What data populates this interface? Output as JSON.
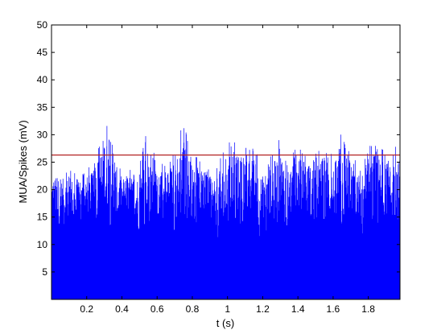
{
  "chart_data": {
    "type": "area",
    "title": "",
    "xlabel": "t (s)",
    "ylabel": "MUA/Spikes (mV)",
    "xlim": [
      0,
      1.98
    ],
    "ylim": [
      0,
      50
    ],
    "x_ticks": [
      0.2,
      0.4,
      0.6,
      0.8,
      1.0,
      1.2,
      1.4,
      1.6,
      1.8
    ],
    "x_tick_labels": [
      "0.2",
      "0.4",
      "0.6",
      "0.8",
      "1",
      "1.2",
      "1.4",
      "1.6",
      "1.8"
    ],
    "y_ticks": [
      5,
      10,
      15,
      20,
      25,
      30,
      35,
      40,
      45,
      50
    ],
    "y_tick_labels": [
      "5",
      "10",
      "15",
      "20",
      "25",
      "30",
      "35",
      "40",
      "45",
      "50"
    ],
    "grid": false,
    "threshold": {
      "y": 26.3,
      "color": "#b22222"
    },
    "signal_color": "#0000ff",
    "series": [
      {
        "t": [
          0.0,
          0.05,
          0.1,
          0.15,
          0.2,
          0.25,
          0.3,
          0.35,
          0.4,
          0.45,
          0.5,
          0.55,
          0.6,
          0.65,
          0.7,
          0.75,
          0.8,
          0.85,
          0.9,
          0.95,
          1.0,
          1.05,
          1.1,
          1.15,
          1.2,
          1.25,
          1.3,
          1.35,
          1.4,
          1.45,
          1.5,
          1.55,
          1.6,
          1.65,
          1.7,
          1.75,
          1.8,
          1.85,
          1.9,
          1.95
        ],
        "upper": [
          24.5,
          23.5,
          24.0,
          23.0,
          24.0,
          25.5,
          33.3,
          27.6,
          24.0,
          24.0,
          24.5,
          32.0,
          24.5,
          25.0,
          27.5,
          32.2,
          26.5,
          25.5,
          24.0,
          25.0,
          28.6,
          28.6,
          27.5,
          28.5,
          24.0,
          26.3,
          29.8,
          25.0,
          28.5,
          26.5,
          26.5,
          28.5,
          26.0,
          32.0,
          27.0,
          24.5,
          27.5,
          29.8,
          26.0,
          27.8
        ],
        "lower": [
          13.0,
          12.5,
          13.5,
          12.0,
          13.5,
          12.5,
          14.0,
          13.0,
          12.5,
          13.5,
          12.0,
          10.5,
          13.0,
          12.5,
          11.5,
          13.5,
          12.0,
          12.5,
          13.0,
          10.0,
          12.5,
          13.0,
          11.0,
          13.0,
          9.0,
          12.5,
          13.5,
          11.5,
          13.0,
          12.5,
          13.5,
          11.0,
          13.0,
          11.0,
          12.5,
          8.0,
          13.0,
          12.0,
          12.5,
          13.5
        ],
        "spike_t": [
          0.315,
          0.345,
          0.505,
          0.535,
          0.735,
          0.96,
          1.04,
          1.105,
          1.375,
          1.59,
          1.81,
          1.955
        ]
      }
    ]
  }
}
